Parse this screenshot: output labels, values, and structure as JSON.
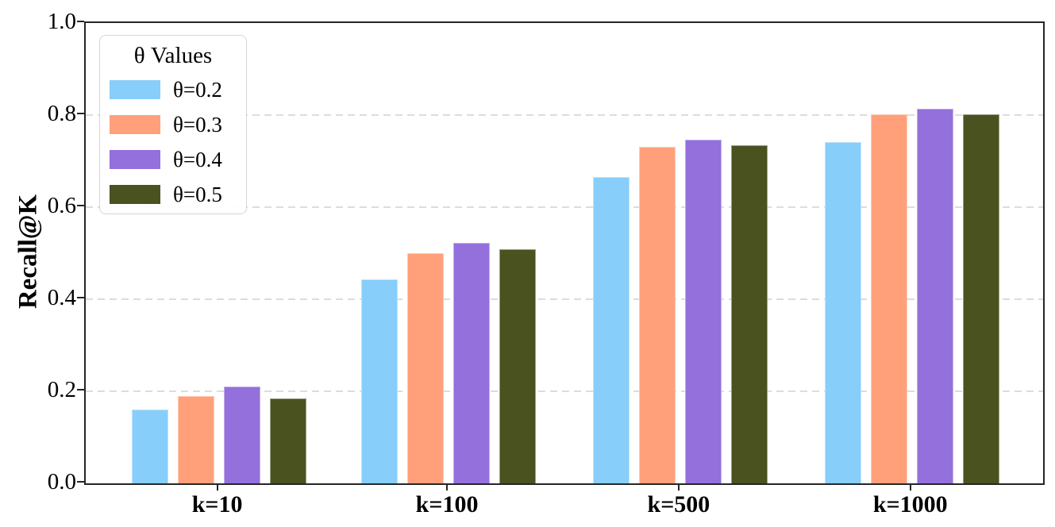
{
  "chart_data": {
    "type": "bar",
    "title": "",
    "xlabel": "",
    "ylabel": "Recall@K",
    "categories": [
      "k=10",
      "k=100",
      "k=500",
      "k=1000"
    ],
    "series": [
      {
        "name": "θ=0.2",
        "color": "#87CEFA",
        "values": [
          0.16,
          0.443,
          0.665,
          0.742
        ]
      },
      {
        "name": "θ=0.3",
        "color": "#FFA07A",
        "values": [
          0.19,
          0.5,
          0.731,
          0.801
        ]
      },
      {
        "name": "θ=0.4",
        "color": "#9370DB",
        "values": [
          0.211,
          0.522,
          0.746,
          0.813
        ]
      },
      {
        "name": "θ=0.5",
        "color": "#4A5220",
        "values": [
          0.185,
          0.508,
          0.735,
          0.801
        ]
      }
    ],
    "ylim": [
      0.0,
      1.0
    ],
    "yticks": [
      0.0,
      0.2,
      0.4,
      0.6,
      0.8,
      1.0
    ],
    "ytick_labels": [
      "0.0",
      "0.2",
      "0.4",
      "0.6",
      "0.8",
      "1.0"
    ],
    "grid": "horizontal-dashed",
    "legend": {
      "title": "θ Values",
      "position": "upper-left"
    }
  },
  "colors": {
    "spine": "#262626",
    "grid": "#dcdcdc",
    "text": "#000000",
    "background": "#ffffff"
  }
}
